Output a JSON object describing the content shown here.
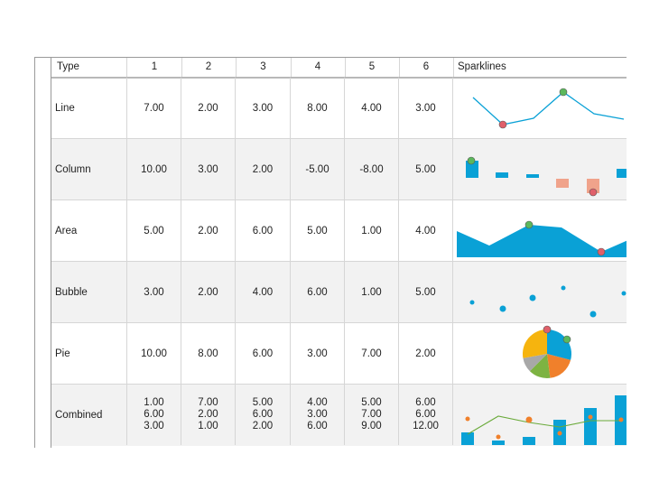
{
  "header": {
    "type_label": "Type",
    "col_labels": [
      "1",
      "2",
      "3",
      "4",
      "5",
      "6"
    ],
    "sparklines_label": "Sparklines"
  },
  "rows": [
    {
      "type": "Line",
      "values": [
        "7.00",
        "2.00",
        "3.00",
        "8.00",
        "4.00",
        "3.00"
      ],
      "sparkline": "line"
    },
    {
      "type": "Column",
      "values": [
        "10.00",
        "3.00",
        "2.00",
        "-5.00",
        "-8.00",
        "5.00"
      ],
      "sparkline": "column"
    },
    {
      "type": "Area",
      "values": [
        "5.00",
        "2.00",
        "6.00",
        "5.00",
        "1.00",
        "4.00"
      ],
      "sparkline": "area"
    },
    {
      "type": "Bubble",
      "values": [
        "3.00",
        "2.00",
        "4.00",
        "6.00",
        "1.00",
        "5.00"
      ],
      "sparkline": "bubble"
    },
    {
      "type": "Pie",
      "values": [
        "10.00",
        "8.00",
        "6.00",
        "3.00",
        "7.00",
        "2.00"
      ],
      "sparkline": "pie"
    },
    {
      "type": "Combined",
      "values": [
        [
          "1.00",
          "6.00",
          "3.00"
        ],
        [
          "7.00",
          "2.00",
          "1.00"
        ],
        [
          "5.00",
          "6.00",
          "2.00"
        ],
        [
          "4.00",
          "3.00",
          "6.00"
        ],
        [
          "5.00",
          "7.00",
          "9.00"
        ],
        [
          "6.00",
          "6.00",
          "12.00"
        ]
      ],
      "sparkline": "combined"
    }
  ],
  "colors": {
    "accent_blue": "#0aa1d6",
    "negative_bar": "#f0a38b",
    "marker_high": "#5cb85c",
    "marker_low": "#e0606a",
    "pie": [
      "#0aa1d6",
      "#f0802b",
      "#7db342",
      "#a8a8a8",
      "#f6b40e"
    ],
    "combined_line": "#6aaa3a",
    "combined_points": "#f0802b"
  }
}
